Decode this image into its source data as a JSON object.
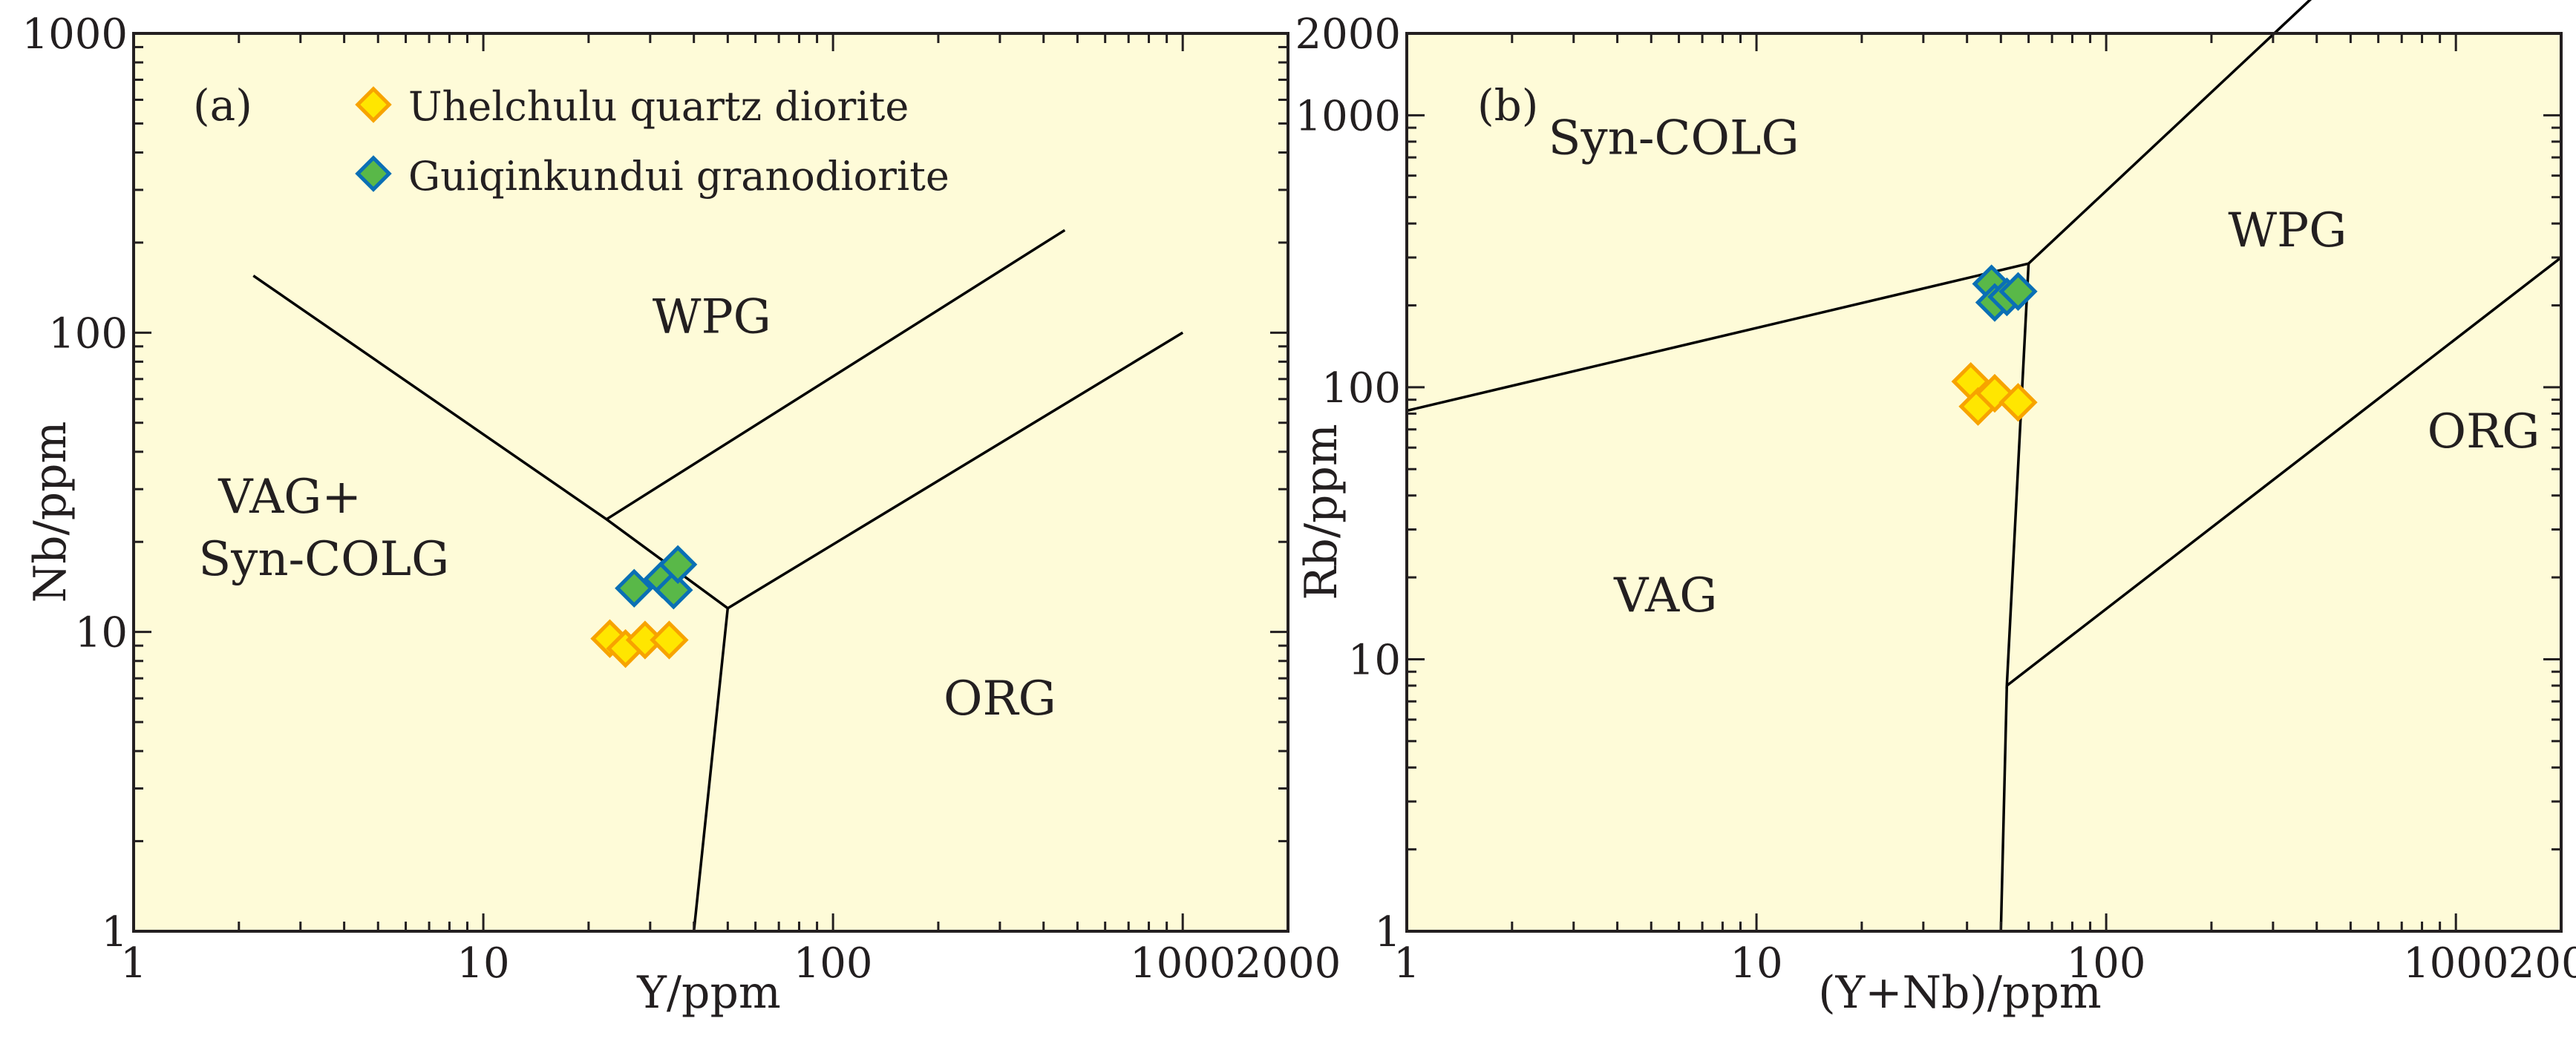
{
  "chart_data": [
    {
      "type": "scatter",
      "panel_label": "(a)",
      "xlabel": "Y/ppm",
      "ylabel": "Nb/ppm",
      "x_scale": "log",
      "y_scale": "log",
      "xlim": [
        1,
        2000
      ],
      "ylim": [
        1,
        1000
      ],
      "x_tick_labels": [
        {
          "value": 1,
          "label": "1"
        },
        {
          "value": 10,
          "label": "10"
        },
        {
          "value": 100,
          "label": "100"
        },
        {
          "value": 1000,
          "label": "1000"
        },
        {
          "value": 2000,
          "label": "2000"
        }
      ],
      "y_tick_labels": [
        {
          "value": 1,
          "label": "1"
        },
        {
          "value": 10,
          "label": "10"
        },
        {
          "value": 100,
          "label": "100"
        },
        {
          "value": 1000,
          "label": "1000"
        }
      ],
      "legend": [
        {
          "name": "Uhelchulu quartz diorite",
          "fill": "#ffe600",
          "stroke": "#f7a300"
        },
        {
          "name": "Guiqinkundui granodiorite",
          "fill": "#59b848",
          "stroke": "#0a6fb5"
        }
      ],
      "series": [
        {
          "name": "Uhelchulu quartz diorite",
          "points": [
            [
              23,
              9.5
            ],
            [
              25.5,
              8.8
            ],
            [
              29,
              9.4
            ],
            [
              34,
              9.4
            ]
          ]
        },
        {
          "name": "Guiqinkundui granodiorite",
          "points": [
            [
              27,
              14
            ],
            [
              32.5,
              15
            ],
            [
              35,
              13.8
            ],
            [
              36,
              16.8
            ]
          ]
        }
      ],
      "boundaries": [
        [
          [
            2.2,
            155
          ],
          [
            22.5,
            23.8
          ],
          [
            50,
            12
          ]
        ],
        [
          [
            22.5,
            23.8
          ],
          [
            460,
            220
          ]
        ],
        [
          [
            50,
            12
          ],
          [
            1000,
            100
          ]
        ],
        [
          [
            50,
            12
          ],
          [
            40,
            1
          ]
        ]
      ],
      "regions": [
        {
          "label": "WPG",
          "x": 45,
          "y": 100
        },
        {
          "label": "VAG+",
          "x": 2.8,
          "y": 25
        },
        {
          "label": "Syn-COLG",
          "x": 3.5,
          "y": 15.5
        },
        {
          "label": "ORG",
          "x": 300,
          "y": 5.3
        }
      ]
    },
    {
      "type": "scatter",
      "panel_label": "(b)",
      "xlabel": "(Y+Nb)/ppm",
      "ylabel": "Rb/ppm",
      "x_scale": "log",
      "y_scale": "log",
      "xlim": [
        1,
        2000
      ],
      "ylim": [
        1,
        2000
      ],
      "x_tick_labels": [
        {
          "value": 1,
          "label": "1"
        },
        {
          "value": 10,
          "label": "10"
        },
        {
          "value": 100,
          "label": "100"
        },
        {
          "value": 1000,
          "label": "1000"
        },
        {
          "value": 2000,
          "label": "2000"
        }
      ],
      "y_tick_labels": [
        {
          "value": 1,
          "label": "1"
        },
        {
          "value": 10,
          "label": "10"
        },
        {
          "value": 100,
          "label": "100"
        },
        {
          "value": 1000,
          "label": "1000"
        },
        {
          "value": 2000,
          "label": "2000"
        }
      ],
      "series": [
        {
          "name": "Uhelchulu quartz diorite",
          "points": [
            [
              41,
              105
            ],
            [
              43,
              85
            ],
            [
              48,
              95
            ],
            [
              56,
              88
            ]
          ]
        },
        {
          "name": "Guiqinkundui granodiorite",
          "points": [
            [
              47,
              240
            ],
            [
              48,
              205
            ],
            [
              52,
              215
            ],
            [
              56,
              225
            ]
          ]
        }
      ],
      "boundaries": [
        [
          [
            1,
            82
          ],
          [
            60,
            285
          ],
          [
            400,
            2800
          ]
        ],
        [
          [
            60,
            285
          ],
          [
            52,
            8
          ],
          [
            2000,
            300
          ]
        ],
        [
          [
            52,
            8
          ],
          [
            50,
            1
          ]
        ]
      ],
      "regions": [
        {
          "label": "Syn-COLG",
          "x": 5.8,
          "y": 720
        },
        {
          "label": "WPG",
          "x": 330,
          "y": 330
        },
        {
          "label": "ORG",
          "x": 1200,
          "y": 60
        },
        {
          "label": "VAG",
          "x": 5.5,
          "y": 15
        }
      ]
    }
  ]
}
